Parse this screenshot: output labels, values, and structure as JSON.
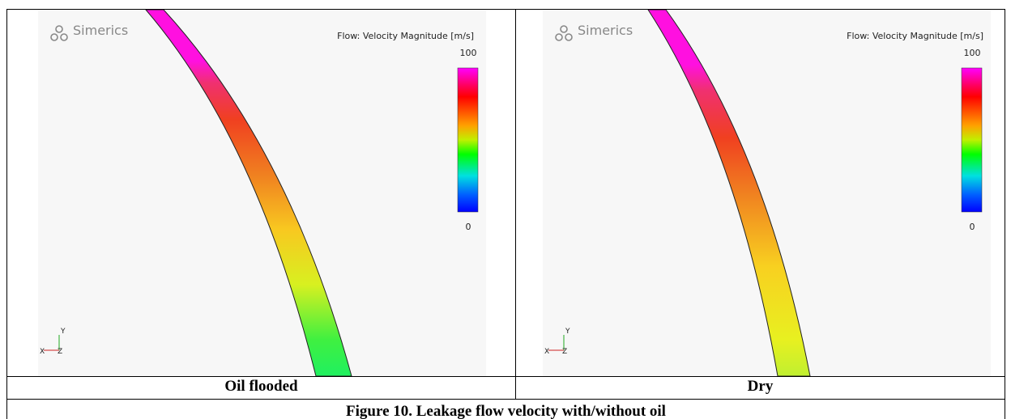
{
  "panels": [
    {
      "brand": "Simerics",
      "colorbar_title": "Flow: Velocity Magnitude [m/s]",
      "colorbar_max": 100,
      "colorbar_min": 0,
      "axis_y": "Y",
      "axis_x": "X",
      "axis_z": "Z",
      "label": "Oil flooded"
    },
    {
      "brand": "Simerics",
      "colorbar_title": "Flow: Velocity Magnitude [m/s]",
      "colorbar_max": 100,
      "colorbar_min": 0,
      "axis_y": "Y",
      "axis_x": "X",
      "axis_z": "Z",
      "label": "Dry"
    }
  ],
  "caption": "Figure 10. Leakage flow velocity with/without oil"
}
